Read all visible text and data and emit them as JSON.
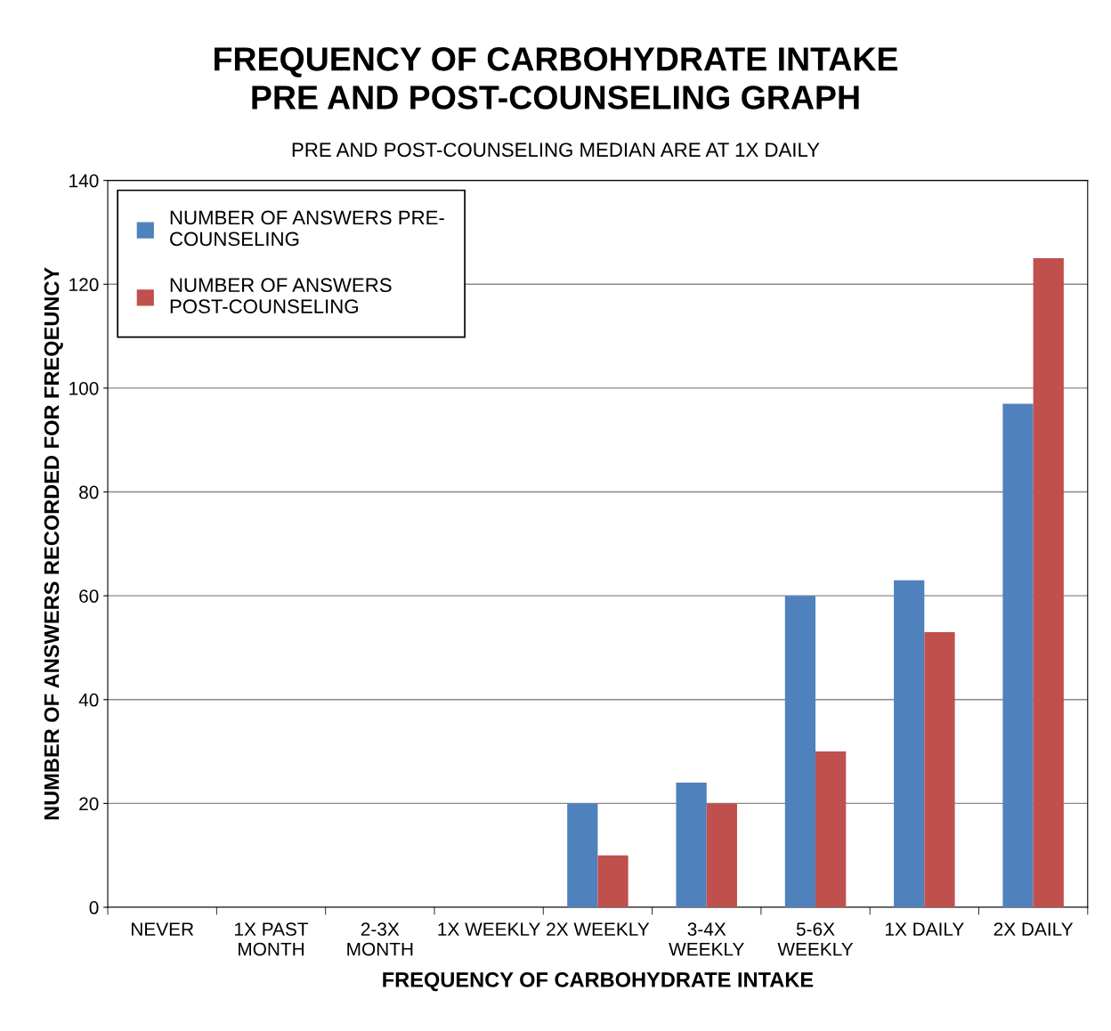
{
  "chart_data": {
    "type": "bar",
    "title": "FREQUENCY OF CARBOHYDRATE INTAKE\nPRE AND POST-COUNSELING GRAPH",
    "subtitle": "PRE AND POST-COUNSELING MEDIAN ARE AT 1X DAILY",
    "xlabel": "FREQUENCY OF CARBOHYDRATE INTAKE",
    "ylabel": "NUMBER OF ANSWERS RECORDED FOR FREQEUNCY",
    "categories": [
      "NEVER",
      "1X PAST\nMONTH",
      "2-3X\nMONTH",
      "1X WEEKLY",
      "2X WEEKLY",
      "3-4X\nWEEKLY",
      "5-6X\nWEEKLY",
      "1X DAILY",
      "2X DAILY"
    ],
    "series": [
      {
        "name": "NUMBER OF ANSWERS PRE-\nCOUNSELING",
        "color": "#4f81bd",
        "values": [
          0,
          0,
          0,
          0,
          20,
          24,
          60,
          63,
          97
        ]
      },
      {
        "name": "NUMBER OF ANSWERS\nPOST-COUNSELING",
        "color": "#c0504d",
        "values": [
          0,
          0,
          0,
          0,
          10,
          20,
          30,
          53,
          125
        ]
      }
    ],
    "ylim": [
      0,
      140
    ],
    "yticks": [
      0,
      20,
      40,
      60,
      80,
      100,
      120,
      140
    ],
    "grid": "y",
    "legend": "top left"
  }
}
